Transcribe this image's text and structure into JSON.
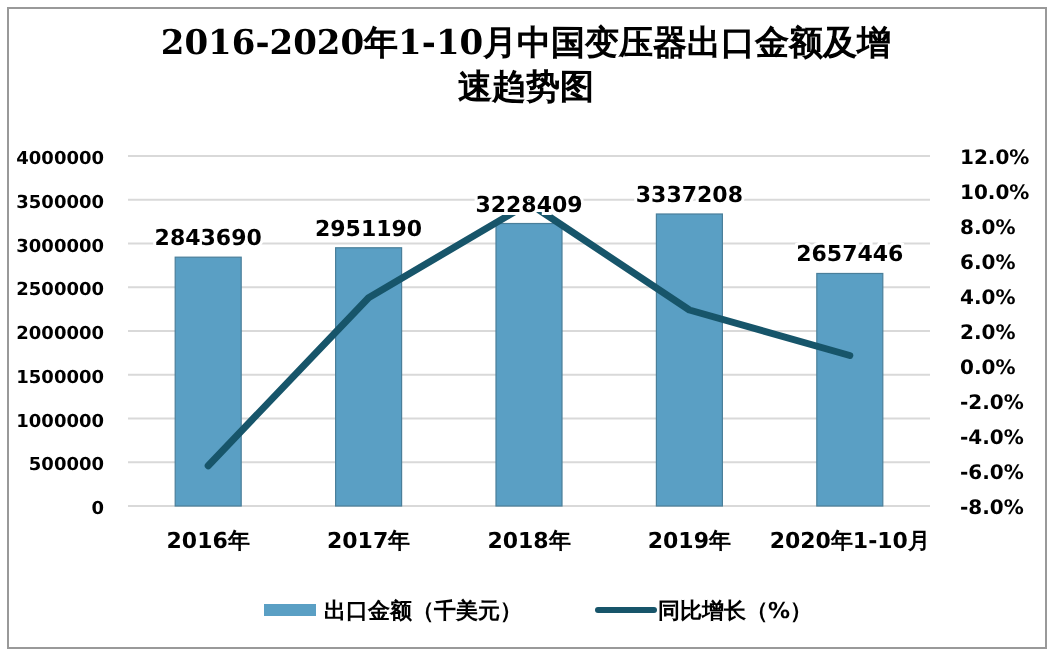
{
  "chart_data": {
    "type": "bar",
    "title": "2016-2020年1-10月中国变压器出口金额及增速趋势图",
    "categories": [
      "2016年",
      "2017年",
      "2018年",
      "2019年",
      "2020年1-10月"
    ],
    "series": [
      {
        "name": "出口金额（千美元）",
        "color": "#5a9fc4",
        "values": [
          2843690,
          2951190,
          3228409,
          3337208,
          2657446
        ],
        "value_labels": [
          "2843690",
          "2951190",
          "3228409",
          "3337208",
          "2657446"
        ]
      },
      {
        "name": "同比增长（%）",
        "type": "line",
        "axis": "y2",
        "color": "#17556a",
        "values": [
          -5.7,
          3.9,
          9.3,
          3.2,
          0.6
        ]
      }
    ],
    "ylim": [
      0,
      4000000
    ],
    "yticks": [
      0,
      500000,
      1000000,
      1500000,
      2000000,
      2500000,
      3000000,
      3500000,
      4000000
    ],
    "y2lim": [
      -8,
      12
    ],
    "y2ticks": [
      {
        "value": -8,
        "label": "-8.0%"
      },
      {
        "value": -6,
        "label": "-6.0%"
      },
      {
        "value": -4,
        "label": "-4.0%"
      },
      {
        "value": -2,
        "label": "-2.0%"
      },
      {
        "value": 0,
        "label": "0.0%"
      },
      {
        "value": 2,
        "label": "2.0%"
      },
      {
        "value": 4,
        "label": "4.0%"
      },
      {
        "value": 6,
        "label": "6.0%"
      },
      {
        "value": 8,
        "label": "8.0%"
      },
      {
        "value": 10,
        "label": "10.0%"
      },
      {
        "value": 12,
        "label": "12.0%"
      }
    ],
    "grid": "y",
    "legend": "bottom",
    "marker": "none",
    "line_style": "solid"
  }
}
